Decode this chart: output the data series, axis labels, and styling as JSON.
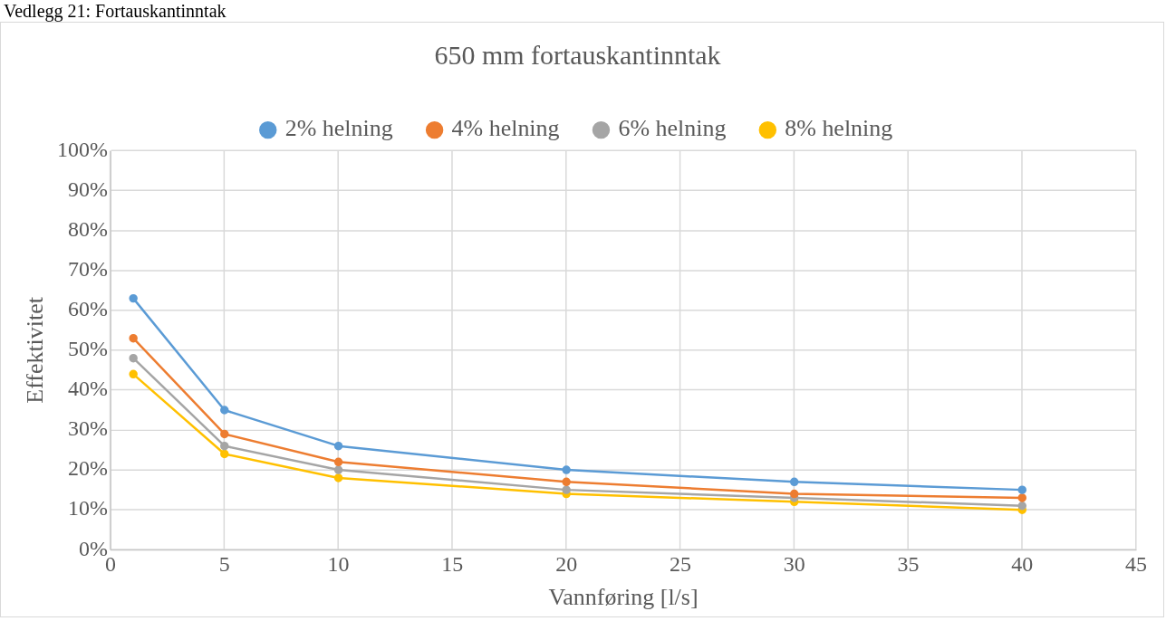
{
  "chart_data": {
    "type": "line",
    "title": "650 mm fortauskantinntak",
    "xlabel": "Vannføring [l/s]",
    "ylabel": "Effektivitet",
    "annotations": [
      "Vedlegg 21: Fortauskantinntak"
    ],
    "x": [
      1,
      5,
      10,
      20,
      30,
      40
    ],
    "series": [
      {
        "name": "2% helning",
        "color": "#5b9bd5",
        "values": [
          63,
          35,
          26,
          20,
          17,
          15
        ]
      },
      {
        "name": "4% helning",
        "color": "#ed7d31",
        "values": [
          53,
          29,
          22,
          17,
          14,
          13
        ]
      },
      {
        "name": "6% helning",
        "color": "#a5a5a5",
        "values": [
          48,
          26,
          20,
          15,
          13,
          11
        ]
      },
      {
        "name": "8% helning",
        "color": "#ffc000",
        "values": [
          44,
          24,
          18,
          14,
          12,
          10
        ]
      }
    ],
    "xlim": [
      0,
      45
    ],
    "xticks": [
      0,
      5,
      10,
      15,
      20,
      25,
      30,
      35,
      40,
      45
    ],
    "ylim": [
      0,
      100
    ],
    "yticks": [
      {
        "value": 0,
        "label": "0%"
      },
      {
        "value": 10,
        "label": "10%"
      },
      {
        "value": 20,
        "label": "20%"
      },
      {
        "value": 30,
        "label": "30%"
      },
      {
        "value": 40,
        "label": "40%"
      },
      {
        "value": 50,
        "label": "50%"
      },
      {
        "value": 60,
        "label": "60%"
      },
      {
        "value": 70,
        "label": "70%"
      },
      {
        "value": 80,
        "label": "80%"
      },
      {
        "value": 90,
        "label": "90%"
      },
      {
        "value": 100,
        "label": "100%"
      }
    ],
    "grid": true,
    "legend": "top",
    "marker": "circle",
    "line_style": "solid"
  }
}
